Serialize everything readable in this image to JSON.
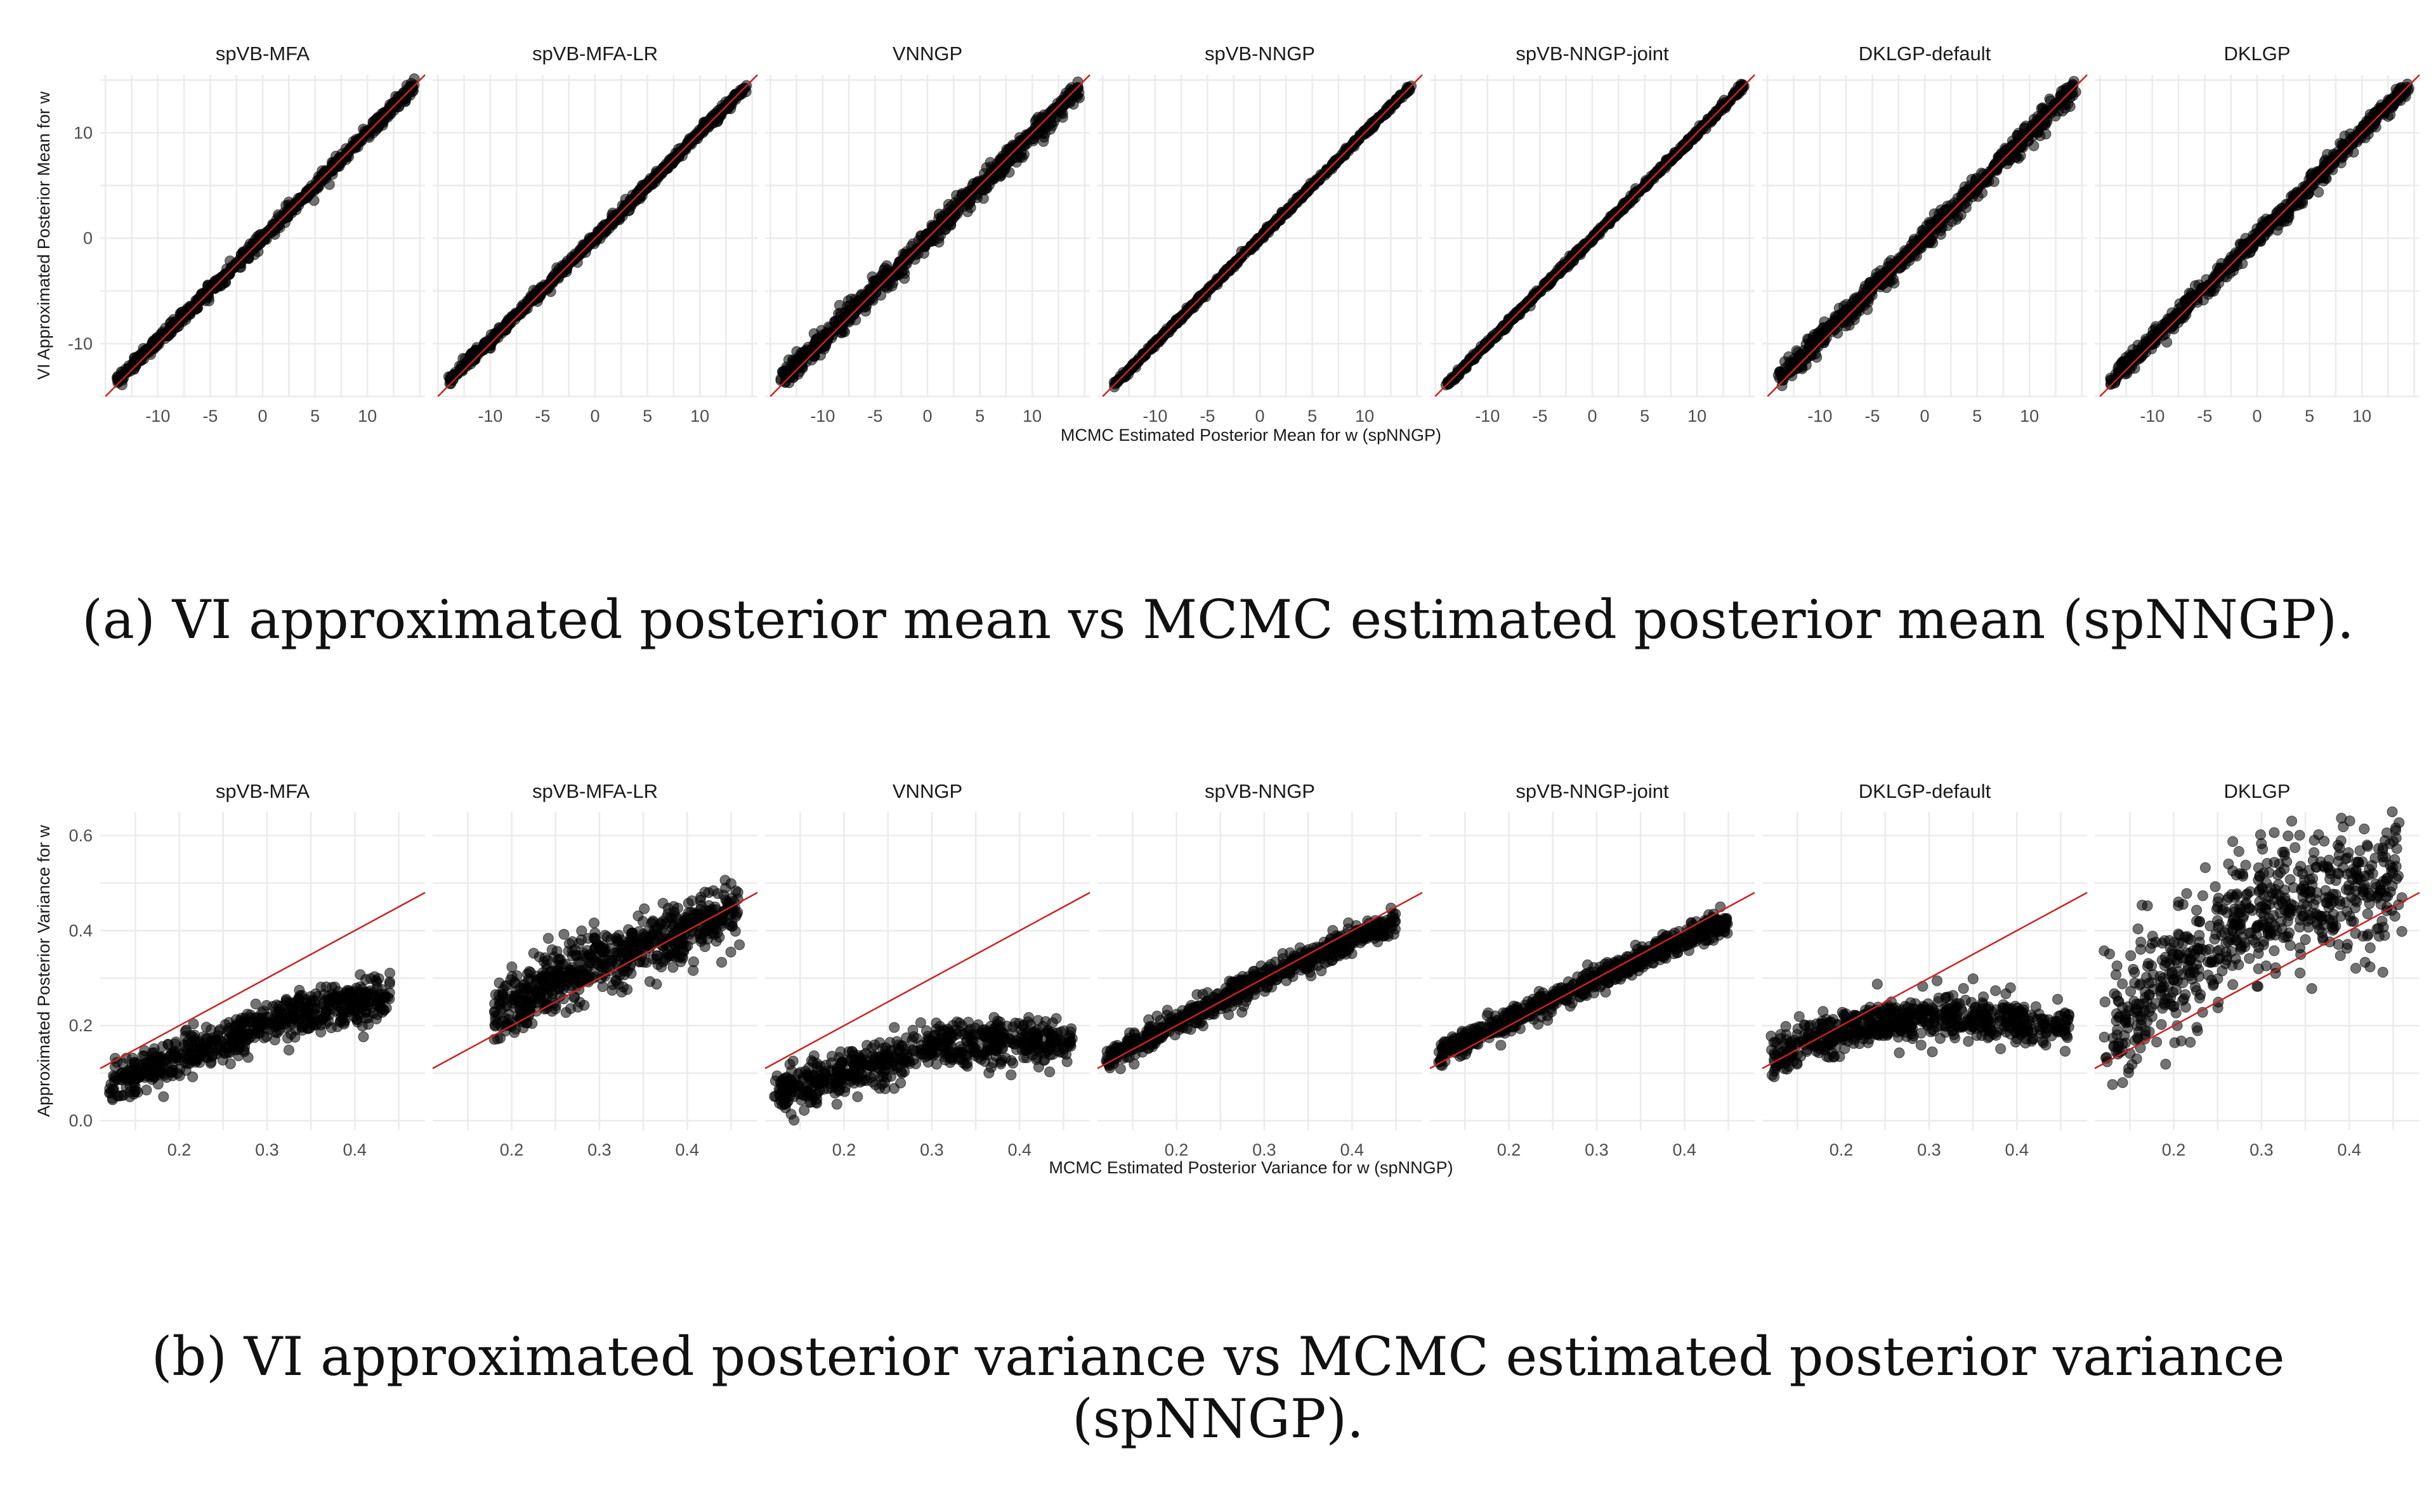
{
  "captions": {
    "a": "(a) VI approximated posterior mean vs MCMC estimated posterior mean (spNNGP).",
    "b": "(b) VI approximated posterior variance vs MCMC estimated posterior variance (spNNGP)."
  },
  "colors": {
    "points": "#000000",
    "reference_line": "#cc2222",
    "grid": "#ebebeb"
  },
  "chart_data": [
    {
      "type": "scatter",
      "panels": [
        "spVB-MFA",
        "spVB-MFA-LR",
        "VNNGP",
        "spVB-NNGP",
        "spVB-NNGP-joint",
        "DKLGP-default",
        "DKLGP"
      ],
      "xlabel": "MCMC Estimated Posterior Mean for w (spNNGP)",
      "ylabel": "VI Approximated Posterior Mean for w",
      "xlim": [
        -15.5,
        15.5
      ],
      "ylim": [
        -15,
        15.5
      ],
      "x_ticks": [
        -10,
        -5,
        0,
        5,
        10
      ],
      "x_tick_labels": [
        "-10",
        "-5",
        "0",
        "5",
        "10"
      ],
      "y_ticks": [
        -10,
        0,
        10
      ],
      "y_tick_labels": [
        "-10",
        "0",
        "10"
      ],
      "reference_line": "y = x",
      "grid": true,
      "point_clouds": [
        {
          "x_range": [
            -14,
            14.5
          ],
          "y_at_x": [
            [
              -14,
              -13.6
            ],
            [
              0,
              0
            ],
            [
              14.5,
              14.5
            ]
          ],
          "spread": 0.7
        },
        {
          "x_range": [
            -14,
            14.5
          ],
          "y_at_x": [
            [
              -14,
              -13.6
            ],
            [
              0,
              0
            ],
            [
              14.5,
              14.5
            ]
          ],
          "spread": 0.55
        },
        {
          "x_range": [
            -14,
            14.5
          ],
          "y_at_x": [
            [
              -14,
              -13.5
            ],
            [
              0,
              0
            ],
            [
              14.5,
              14.3
            ]
          ],
          "spread": 1.2
        },
        {
          "x_range": [
            -14,
            14.5
          ],
          "y_at_x": [
            [
              -14,
              -14
            ],
            [
              0,
              0
            ],
            [
              14.5,
              14.5
            ]
          ],
          "spread": 0.3
        },
        {
          "x_range": [
            -14,
            14.5
          ],
          "y_at_x": [
            [
              -14,
              -14
            ],
            [
              0,
              0
            ],
            [
              14.5,
              14.5
            ]
          ],
          "spread": 0.35
        },
        {
          "x_range": [
            -14,
            14.5
          ],
          "y_at_x": [
            [
              -14,
              -13.5
            ],
            [
              0,
              0
            ],
            [
              14.5,
              14.5
            ]
          ],
          "spread": 1.2
        },
        {
          "x_range": [
            -14,
            14.5
          ],
          "y_at_x": [
            [
              -14,
              -13.5
            ],
            [
              0,
              0
            ],
            [
              14.5,
              14.5
            ]
          ],
          "spread": 1.0
        }
      ]
    },
    {
      "type": "scatter",
      "panels": [
        "spVB-MFA",
        "spVB-MFA-LR",
        "VNNGP",
        "spVB-NNGP",
        "spVB-NNGP-joint",
        "DKLGP-default",
        "DKLGP"
      ],
      "xlabel": "MCMC Estimated Posterior Variance for w (spNNGP)",
      "ylabel": "Approximated Posterior Variance for w",
      "xlim": [
        0.11,
        0.48
      ],
      "ylim": [
        -0.02,
        0.65
      ],
      "x_ticks": [
        0.2,
        0.3,
        0.4
      ],
      "x_tick_labels": [
        "0.2",
        "0.3",
        "0.4"
      ],
      "y_ticks": [
        0.0,
        0.2,
        0.4,
        0.6
      ],
      "y_tick_labels": [
        "0.0",
        "0.2",
        "0.4",
        "0.6"
      ],
      "reference_line": "y = x",
      "grid": true,
      "point_clouds": [
        {
          "x_range": [
            0.12,
            0.44
          ],
          "y_at_x": [
            [
              0.12,
              0.07
            ],
            [
              0.2,
              0.13
            ],
            [
              0.3,
              0.21
            ],
            [
              0.44,
              0.26
            ]
          ],
          "spread": 0.05
        },
        {
          "x_range": [
            0.18,
            0.46
          ],
          "y_at_x": [
            [
              0.18,
              0.22
            ],
            [
              0.25,
              0.3
            ],
            [
              0.35,
              0.37
            ],
            [
              0.46,
              0.44
            ]
          ],
          "spread": 0.07
        },
        {
          "x_range": [
            0.12,
            0.46
          ],
          "y_at_x": [
            [
              0.12,
              0.06
            ],
            [
              0.2,
              0.1
            ],
            [
              0.3,
              0.16
            ],
            [
              0.46,
              0.17
            ]
          ],
          "spread": 0.05
        },
        {
          "x_range": [
            0.12,
            0.45
          ],
          "y_at_x": [
            [
              0.12,
              0.13
            ],
            [
              0.3,
              0.3
            ],
            [
              0.45,
              0.42
            ]
          ],
          "spread": 0.03
        },
        {
          "x_range": [
            0.12,
            0.45
          ],
          "y_at_x": [
            [
              0.12,
              0.14
            ],
            [
              0.3,
              0.3
            ],
            [
              0.45,
              0.42
            ]
          ],
          "spread": 0.03
        },
        {
          "x_range": [
            0.12,
            0.46
          ],
          "y_at_x": [
            [
              0.12,
              0.14
            ],
            [
              0.2,
              0.19
            ],
            [
              0.3,
              0.22
            ],
            [
              0.46,
              0.2
            ]
          ],
          "spread": 0.05
        },
        {
          "x_range": [
            0.12,
            0.46
          ],
          "y_at_x": [
            [
              0.12,
              0.18
            ],
            [
              0.2,
              0.3
            ],
            [
              0.3,
              0.45
            ],
            [
              0.46,
              0.5
            ]
          ],
          "spread": 0.14
        }
      ]
    }
  ]
}
